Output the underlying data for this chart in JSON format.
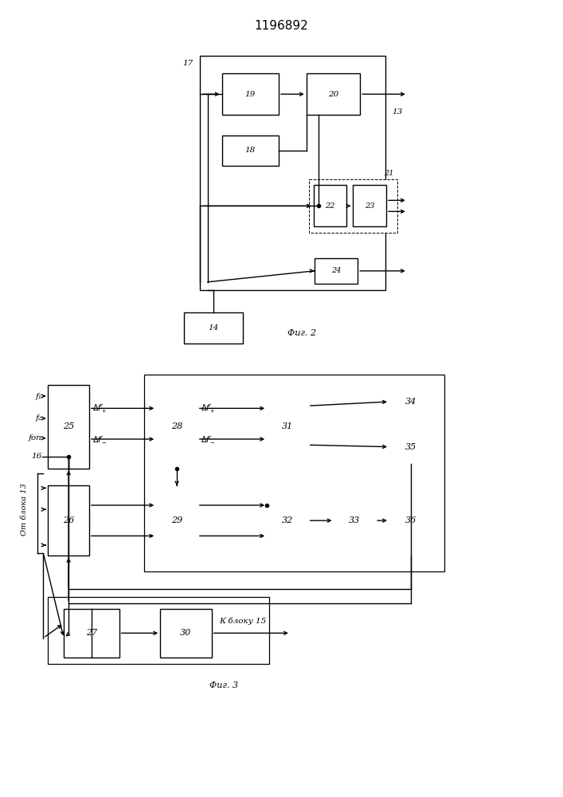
{
  "title": "1196892",
  "fig2_caption": "Фиг. 2",
  "fig3_caption": "Фиг. 3",
  "bg_color": "#ffffff"
}
